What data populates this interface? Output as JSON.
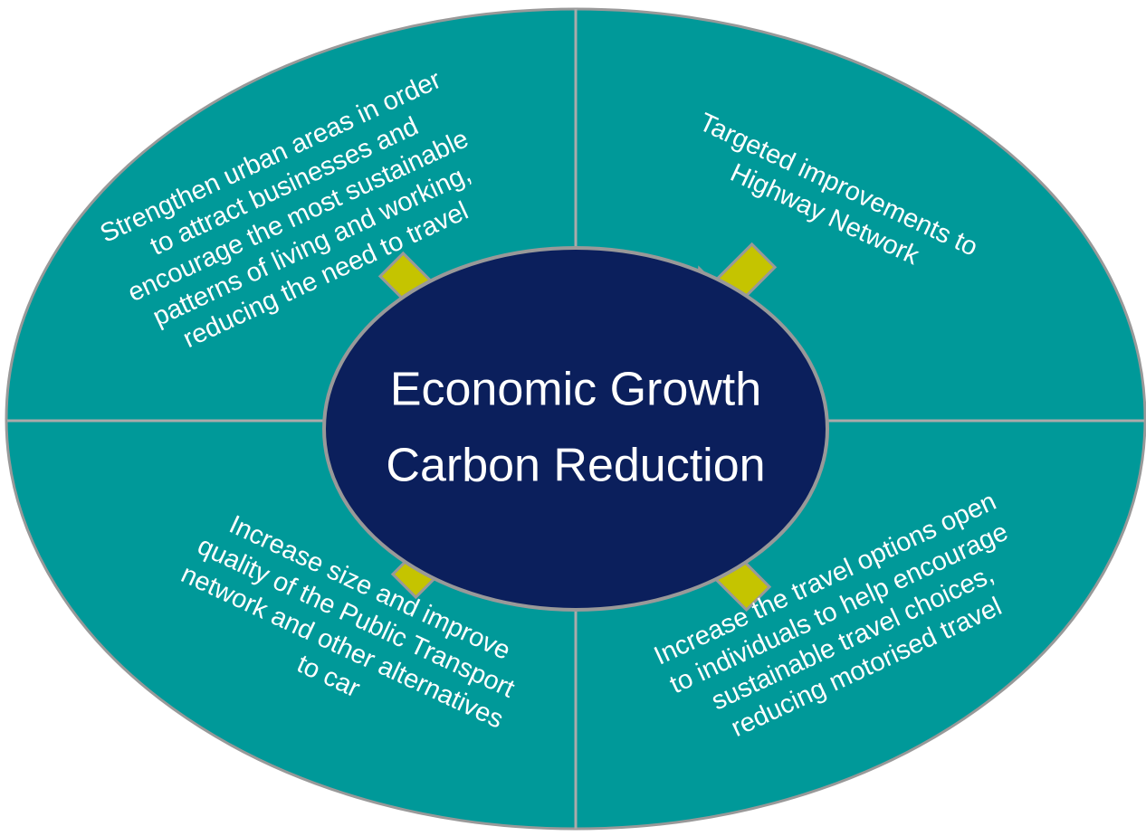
{
  "center": {
    "lines": [
      "Economic Growth",
      "Carbon Reduction"
    ]
  },
  "quadrants": [
    {
      "lines": [
        "Strengthen urban areas in order",
        "to attract businesses and",
        "encourage the most sustainable",
        "patterns of living and working,",
        "reducing the need to travel"
      ]
    },
    {
      "lines": [
        "Targeted improvements to",
        "Highway Network"
      ]
    },
    {
      "lines": [
        "Increase size and improve",
        "quality of the Public Transport",
        "network and other alternatives",
        "to car"
      ]
    },
    {
      "lines": [
        "Increase the travel options open",
        "to individuals to help encourage",
        "sustainable travel choices,",
        "reducing motorised travel"
      ]
    }
  ]
}
